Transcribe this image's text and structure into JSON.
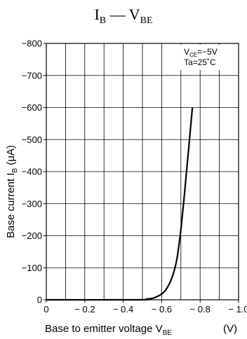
{
  "chart_data": {
    "type": "line",
    "title": {
      "main": "I",
      "main_sub": "B",
      "dash": " — ",
      "right": "V",
      "right_sub": "BE"
    },
    "xlabel": {
      "text": "Base to emitter voltage  V",
      "sub": "BE",
      "unit": "(V)"
    },
    "ylabel": {
      "text": "Base current  I",
      "sub": "B",
      "unit": "(μA)"
    },
    "xlim": [
      0,
      -1.0
    ],
    "ylim": [
      0,
      -800
    ],
    "xticks": [
      0,
      -0.2,
      -0.4,
      -0.6,
      -0.8,
      -1.0
    ],
    "xtick_labels": [
      "0",
      "− 0.2",
      "− 0.4",
      "− 0.6",
      "− 0.8",
      "− 1.0"
    ],
    "yticks": [
      0,
      -100,
      -200,
      -300,
      -400,
      -500,
      -600,
      -700,
      -800
    ],
    "ytick_labels": [
      "0",
      "−100",
      "−200",
      "−300",
      "−400",
      "−500",
      "−600",
      "−700",
      "−800"
    ],
    "grid": true,
    "conditions": [
      {
        "text": "V",
        "sub": "CE",
        "rest": "=−5V"
      },
      {
        "text": "Ta=25˚C",
        "sub": "",
        "rest": ""
      }
    ],
    "series": [
      {
        "x": [
          0,
          -0.48,
          -0.52,
          -0.56,
          -0.6,
          -0.62,
          -0.64,
          -0.66,
          -0.68,
          -0.7,
          -0.72,
          -0.74,
          -0.76
        ],
        "y": [
          0,
          0,
          -2,
          -6,
          -18,
          -30,
          -50,
          -80,
          -130,
          -220,
          -340,
          -470,
          -600
        ]
      }
    ]
  }
}
